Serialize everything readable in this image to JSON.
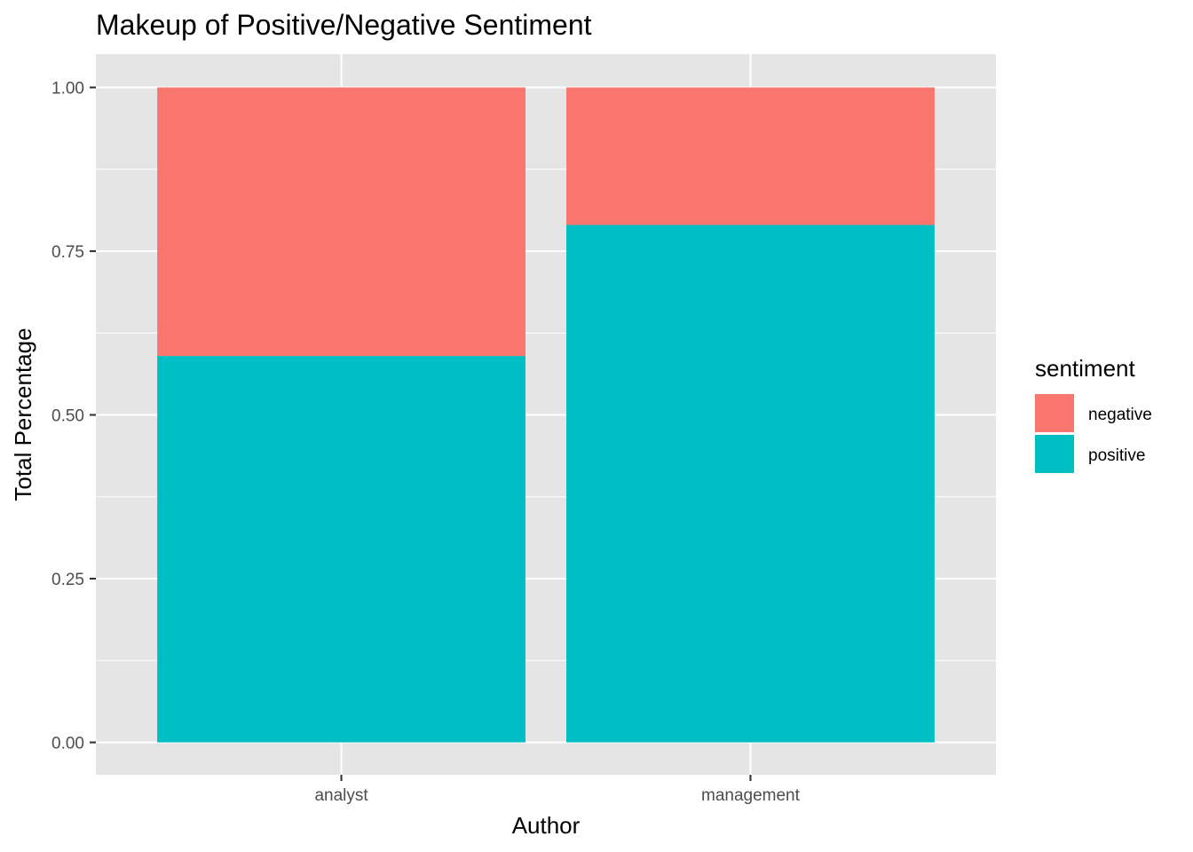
{
  "chart_data": {
    "type": "bar",
    "stacked": true,
    "title": "Makeup of Positive/Negative Sentiment",
    "xlabel": "Author",
    "ylabel": "Total Percentage",
    "categories": [
      "analyst",
      "management"
    ],
    "series": [
      {
        "name": "negative",
        "values": [
          0.41,
          0.21
        ],
        "color": "#F8766D"
      },
      {
        "name": "positive",
        "values": [
          0.59,
          0.79
        ],
        "color": "#00BFC4"
      }
    ],
    "stack_order": [
      "positive",
      "negative"
    ],
    "ylim": [
      0,
      1.05
    ],
    "yticks": [
      0,
      0.25,
      0.5,
      0.75,
      1.0
    ],
    "ytick_labels": [
      "0.00",
      "0.25",
      "0.50",
      "0.75",
      "1.00"
    ],
    "grid": true,
    "legend": {
      "title": "sentiment",
      "position": "right"
    },
    "panel_background": "#e5e5e5",
    "gridline_color": "#ffffff"
  }
}
